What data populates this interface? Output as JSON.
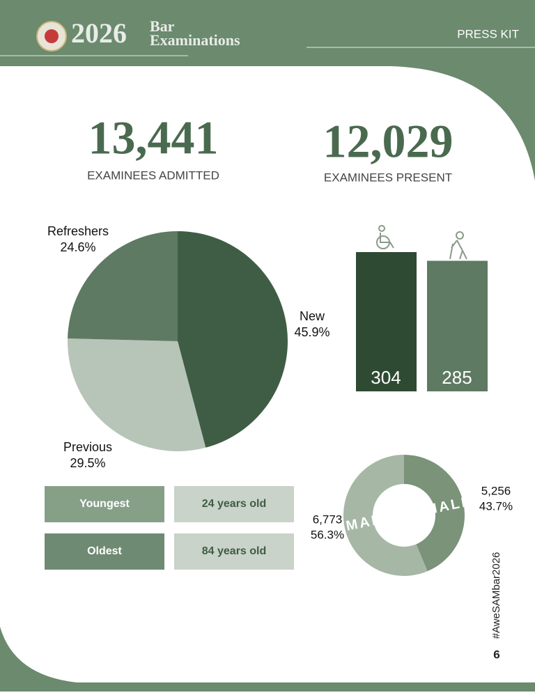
{
  "header": {
    "year": "2026",
    "title_top": "Bar",
    "title_bottom": "Examinations",
    "tag": "PRESS KIT"
  },
  "stats": [
    {
      "value": "13,441",
      "label": "EXAMINEES ADMITTED"
    },
    {
      "value": "12,029",
      "label": "EXAMINEES PRESENT"
    }
  ],
  "chart_data": [
    {
      "type": "pie",
      "categories": [
        "New",
        "Previous",
        "Refreshers"
      ],
      "values": [
        45.9,
        29.5,
        24.6
      ],
      "value_labels": [
        "45.9%",
        "29.5%",
        "24.6%"
      ],
      "colors": [
        "#3f5d44",
        "#b7c5b8",
        "#5e7a62"
      ]
    },
    {
      "type": "bar",
      "values": [
        304,
        285
      ],
      "colors": [
        "#2e4a33",
        "#5e7a62"
      ]
    },
    {
      "type": "donut",
      "categories": [
        "MALE",
        "FEMALE"
      ],
      "values": [
        5256,
        6773
      ],
      "value_labels": [
        "5,256",
        "6,773"
      ],
      "percents": [
        43.7,
        56.3
      ],
      "percent_labels": [
        "43.7%",
        "56.3%"
      ],
      "colors": [
        "#7a9379",
        "#a6b7a6"
      ]
    }
  ],
  "ages": [
    {
      "label": "Youngest",
      "value": "24 years old"
    },
    {
      "label": "Oldest",
      "value": "84 years old"
    }
  ],
  "hashtag": "#AweSAMbar2026",
  "page": "6"
}
